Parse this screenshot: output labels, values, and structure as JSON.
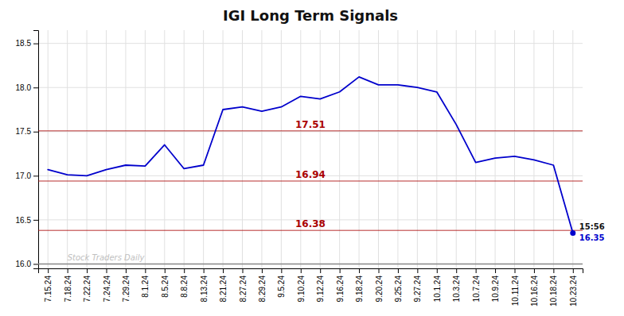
{
  "chart_data": {
    "type": "line",
    "title": "IGI Long Term Signals",
    "categories": [
      "7.15.24",
      "7.18.24",
      "7.22.24",
      "7.24.24",
      "7.29.24",
      "8.1.24",
      "8.5.24",
      "8.8.24",
      "8.13.24",
      "8.21.24",
      "8.27.24",
      "8.29.24",
      "9.5.24",
      "9.10.24",
      "9.12.24",
      "9.16.24",
      "9.18.24",
      "9.20.24",
      "9.25.24",
      "9.27.24",
      "10.1.24",
      "10.3.24",
      "10.7.24",
      "10.9.24",
      "10.11.24",
      "10.16.24",
      "10.18.24",
      "10.23.24"
    ],
    "values": [
      17.07,
      17.01,
      17.0,
      17.07,
      17.12,
      17.11,
      17.35,
      17.08,
      17.12,
      17.75,
      17.78,
      17.73,
      17.78,
      17.9,
      17.87,
      17.95,
      18.12,
      18.03,
      18.03,
      18.0,
      17.95,
      17.58,
      17.15,
      17.2,
      17.22,
      17.18,
      17.12,
      16.35
    ],
    "color": "#0000cc",
    "ylim": [
      15.95,
      18.65
    ],
    "yticks": [
      {
        "value": 16.0,
        "label": "16.0"
      },
      {
        "value": 16.5,
        "label": "16.5"
      },
      {
        "value": 17.0,
        "label": "17.0"
      },
      {
        "value": 17.5,
        "label": "17.5"
      },
      {
        "value": 18.0,
        "label": "18.0"
      },
      {
        "value": 18.5,
        "label": "18.5"
      }
    ],
    "grid": true,
    "baseline": 16.0,
    "annotations": [
      {
        "y": 17.51,
        "label": "17.51",
        "color": "#aa0000"
      },
      {
        "y": 16.94,
        "label": "16.94",
        "color": "#aa0000"
      },
      {
        "y": 16.38,
        "label": "16.38",
        "color": "#aa0000"
      }
    ],
    "end_labels": [
      "15:56",
      "16.35"
    ],
    "watermark": "Stock Traders Daily"
  }
}
